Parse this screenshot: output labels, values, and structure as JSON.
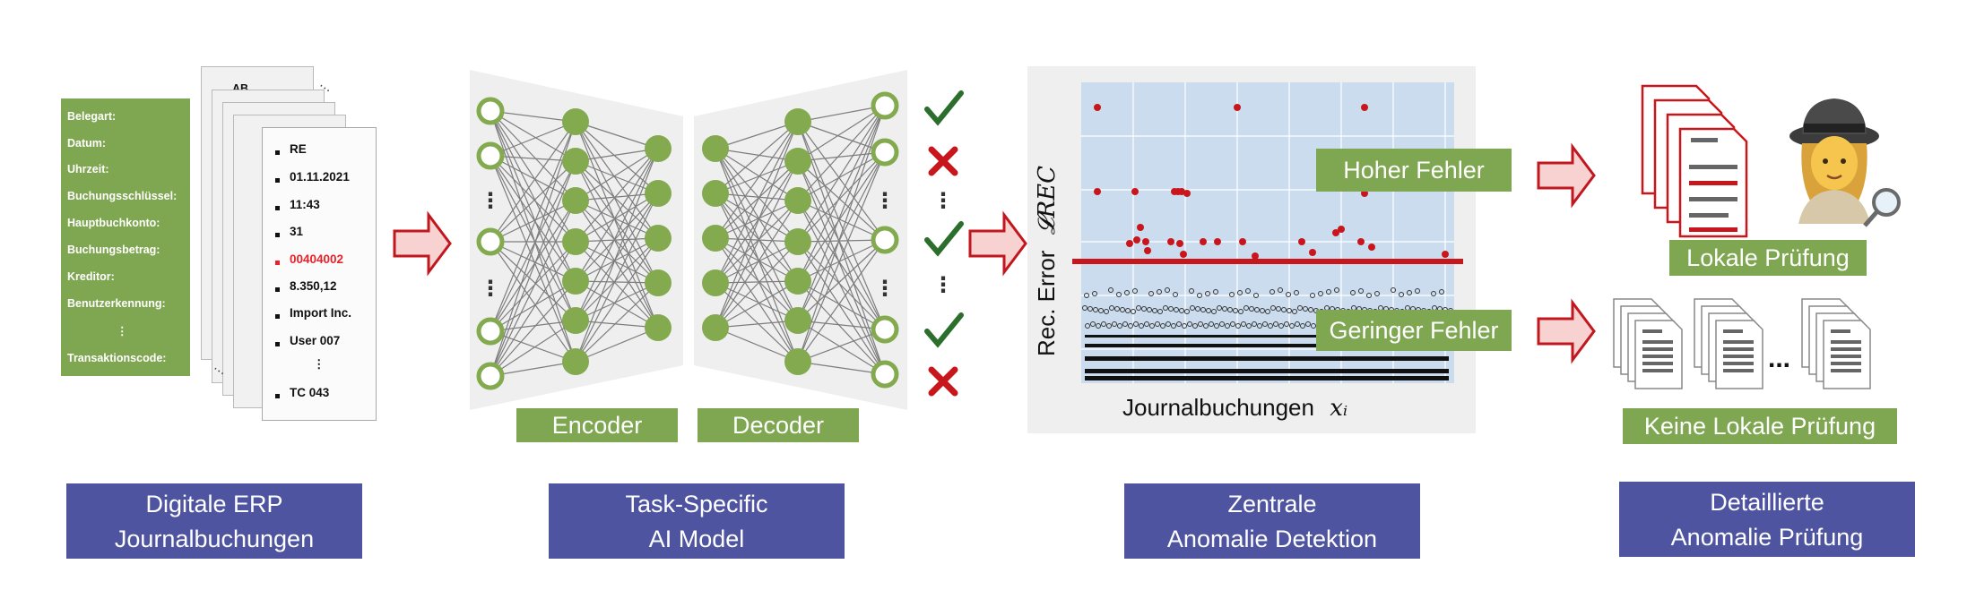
{
  "stage1": {
    "fields": [
      "Belegart:",
      "Datum:",
      "Uhrzeit:",
      "Buchungsschlüssel:",
      "Hauptbuchkonto:",
      "Buchungsbetrag:",
      "Kreditor:",
      "Benutzerkennung:",
      "⋮",
      "Transaktionscode:"
    ],
    "back_doc_first": "AB",
    "front_doc_values": [
      "RE",
      "01.11.2021",
      "11:43",
      "31",
      "00404002",
      "8.350,12",
      "Import Inc.",
      "User 007",
      "⋮",
      "TC 043"
    ],
    "highlight_color": "#e8212a",
    "title_line1": "Digitale ERP",
    "title_line2": "Journalbuchungen"
  },
  "stage2": {
    "encoder_label": "Encoder",
    "decoder_label": "Decoder",
    "outputs": [
      "check",
      "cross",
      "vdots",
      "check",
      "vdots",
      "check",
      "cross"
    ],
    "title_line1": "Task-Specific",
    "title_line2": "AI Model"
  },
  "stage3": {
    "ylabel": "Rec. Error",
    "ylabel_symbol": "𝓛REC",
    "xlabel": "Journalbuchungen",
    "xlabel_symbol": "xᵢ",
    "high_label": "Hoher Fehler",
    "low_label": "Geringer Fehler",
    "title_line1": "Zentrale",
    "title_line2": "Anomalie Detektion"
  },
  "stage4": {
    "local_label": "Lokale Prüfung",
    "nolocal_label": "Keine Lokale Prüfung",
    "ellipsis": "...",
    "title_line1": "Detaillierte",
    "title_line2": "Anomalie Prüfung"
  },
  "colors": {
    "green": "#7fa650",
    "node": "#84aa4f",
    "navy": "#4f54a0",
    "red": "#c8161d",
    "arrow_fill": "#f8d1d1",
    "arrow_stroke": "#c0181e",
    "plot_bg": "#ccdcef",
    "check": "#2c6e2c"
  }
}
